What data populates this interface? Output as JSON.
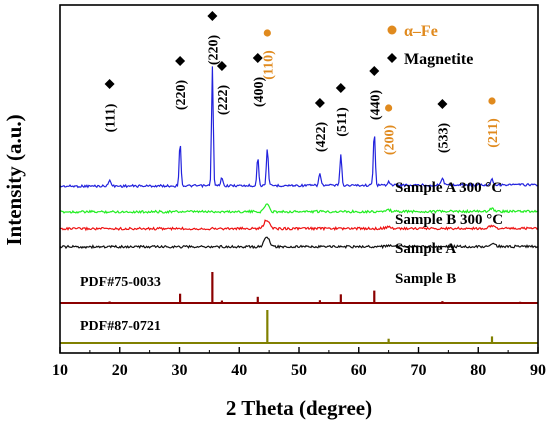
{
  "chart_data": {
    "type": "line",
    "xlabel": "2 Theta (degree)",
    "ylabel": "Intensity (a.u.)",
    "xlim": [
      10,
      90
    ],
    "x_ticks": [
      10,
      20,
      30,
      40,
      50,
      60,
      70,
      80,
      90
    ],
    "grid": false,
    "legend": {
      "position": "top-right",
      "entries": [
        {
          "symbol": "circle",
          "label": "α–Fe",
          "color": "#e08a1e"
        },
        {
          "symbol": "diamond",
          "label": "Magnetite",
          "color": "#000000"
        }
      ]
    },
    "series": [
      {
        "name": "Sample A 300 °C",
        "color": "#2222dd",
        "baseline": 0.71,
        "slope": 0.12,
        "peaks": [
          {
            "x": 18.3,
            "h": 0.06,
            "w": 0.25
          },
          {
            "x": 30.1,
            "h": 0.36,
            "w": 0.22
          },
          {
            "x": 35.5,
            "h": 1.0,
            "w": 0.2
          },
          {
            "x": 37.1,
            "h": 0.07,
            "w": 0.22
          },
          {
            "x": 43.1,
            "h": 0.24,
            "w": 0.22
          },
          {
            "x": 44.7,
            "h": 0.32,
            "w": 0.22
          },
          {
            "x": 53.5,
            "h": 0.1,
            "w": 0.25
          },
          {
            "x": 57.0,
            "h": 0.26,
            "w": 0.22
          },
          {
            "x": 62.6,
            "h": 0.46,
            "w": 0.22
          },
          {
            "x": 65.0,
            "h": 0.03,
            "w": 0.3
          },
          {
            "x": 74.0,
            "h": 0.06,
            "w": 0.3
          },
          {
            "x": 82.3,
            "h": 0.05,
            "w": 0.3
          }
        ]
      },
      {
        "name": "Sample B 300 °C",
        "color": "#22ee22",
        "baseline": 0.505,
        "slope": 0.04,
        "peaks": [
          {
            "x": 44.6,
            "h": 0.2,
            "w": 0.5
          },
          {
            "x": 65.0,
            "h": 0.03,
            "w": 0.6
          },
          {
            "x": 82.3,
            "h": 0.06,
            "w": 0.6
          }
        ]
      },
      {
        "name": "Sample A",
        "color": "#ee1111",
        "baseline": 0.37,
        "slope": 0.03,
        "peaks": [
          {
            "x": 44.6,
            "h": 0.22,
            "w": 0.6
          },
          {
            "x": 65.0,
            "h": 0.03,
            "w": 0.7
          },
          {
            "x": 82.3,
            "h": 0.06,
            "w": 0.7
          }
        ]
      },
      {
        "name": "Sample B",
        "color": "#111111",
        "baseline": 0.225,
        "slope": 0.03,
        "peaks": [
          {
            "x": 44.6,
            "h": 0.25,
            "w": 0.6
          },
          {
            "x": 65.0,
            "h": 0.03,
            "w": 0.7
          },
          {
            "x": 82.3,
            "h": 0.06,
            "w": 0.7
          }
        ]
      }
    ],
    "references": [
      {
        "name": "PDF#75-0033",
        "color": "#8b0000",
        "lines": [
          {
            "x": 18.3,
            "h": 0.05
          },
          {
            "x": 30.1,
            "h": 0.3
          },
          {
            "x": 35.5,
            "h": 1.0
          },
          {
            "x": 37.1,
            "h": 0.08
          },
          {
            "x": 43.1,
            "h": 0.2
          },
          {
            "x": 53.5,
            "h": 0.09
          },
          {
            "x": 57.0,
            "h": 0.28
          },
          {
            "x": 62.6,
            "h": 0.4
          },
          {
            "x": 71.0,
            "h": 0.03
          },
          {
            "x": 74.0,
            "h": 0.06
          },
          {
            "x": 75.0,
            "h": 0.03
          },
          {
            "x": 79.0,
            "h": 0.03
          },
          {
            "x": 87.0,
            "h": 0.04
          }
        ]
      },
      {
        "name": "PDF#87-0721",
        "color": "#808000",
        "lines": [
          {
            "x": 44.7,
            "h": 1.0
          },
          {
            "x": 65.0,
            "h": 0.13
          },
          {
            "x": 82.3,
            "h": 0.2
          }
        ]
      }
    ],
    "annotations": [
      {
        "label": "(111)",
        "x": 18.3,
        "marker": "diamond",
        "phase": "Magnetite"
      },
      {
        "label": "(220)",
        "x": 30.1,
        "marker": "diamond",
        "phase": "Magnetite"
      },
      {
        "label": "(220)",
        "x": 35.5,
        "marker": "diamond",
        "phase": "Magnetite"
      },
      {
        "label": "(222)",
        "x": 37.1,
        "marker": "diamond",
        "phase": "Magnetite"
      },
      {
        "label": "(400)",
        "x": 43.1,
        "marker": "diamond",
        "phase": "Magnetite"
      },
      {
        "label": "(110)",
        "x": 44.7,
        "marker": "circle",
        "phase": "α–Fe"
      },
      {
        "label": "(422)",
        "x": 53.5,
        "marker": "diamond",
        "phase": "Magnetite"
      },
      {
        "label": "(511)",
        "x": 57.0,
        "marker": "diamond",
        "phase": "Magnetite"
      },
      {
        "label": "(440)",
        "x": 62.6,
        "marker": "diamond",
        "phase": "Magnetite"
      },
      {
        "label": "(200)",
        "x": 65.0,
        "marker": "circle",
        "phase": "α–Fe"
      },
      {
        "label": "(533)",
        "x": 74.0,
        "marker": "diamond",
        "phase": "Magnetite"
      },
      {
        "label": "(211)",
        "x": 82.3,
        "marker": "circle",
        "phase": "α–Fe"
      }
    ]
  }
}
